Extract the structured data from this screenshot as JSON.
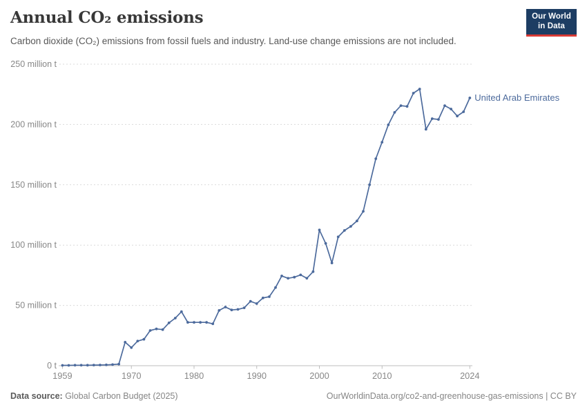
{
  "header": {
    "title": "Annual CO₂ emissions",
    "subtitle": "Carbon dioxide (CO₂) emissions from fossil fuels and industry. Land-use change emissions are not included.",
    "logo": {
      "line1": "Our World",
      "line2": "in Data"
    }
  },
  "chart_data": {
    "type": "line",
    "title": "Annual CO₂ emissions",
    "entity_label": "United Arab Emirates",
    "unit": "million t",
    "x": [
      1959,
      1960,
      1961,
      1962,
      1963,
      1964,
      1965,
      1966,
      1967,
      1968,
      1969,
      1970,
      1971,
      1972,
      1973,
      1974,
      1975,
      1976,
      1977,
      1978,
      1979,
      1980,
      1981,
      1982,
      1983,
      1984,
      1985,
      1986,
      1987,
      1988,
      1989,
      1990,
      1991,
      1992,
      1993,
      1994,
      1995,
      1996,
      1997,
      1998,
      1999,
      2000,
      2001,
      2002,
      2003,
      2004,
      2005,
      2006,
      2007,
      2008,
      2009,
      2010,
      2011,
      2012,
      2013,
      2014,
      2015,
      2016,
      2017,
      2018,
      2019,
      2020,
      2021,
      2022,
      2023,
      2024
    ],
    "series": [
      {
        "name": "United Arab Emirates",
        "color": "#4c6a9c",
        "values": [
          0.3,
          0.3,
          0.4,
          0.4,
          0.4,
          0.5,
          0.6,
          0.7,
          0.9,
          1.3,
          19.5,
          15.0,
          20.4,
          21.9,
          29.2,
          30.5,
          29.9,
          35.5,
          39.5,
          44.8,
          35.9,
          35.9,
          35.9,
          35.9,
          34.7,
          45.8,
          48.6,
          46.2,
          46.7,
          48.0,
          53.4,
          51.5,
          56.2,
          57.2,
          64.8,
          74.4,
          72.5,
          73.4,
          75.3,
          72.5,
          78.0,
          112.5,
          101.4,
          85.2,
          106.8,
          112.1,
          115.5,
          120.0,
          128.0,
          150.0,
          171.6,
          185.3,
          199.7,
          210.0,
          215.6,
          215.0,
          226.0,
          229.4,
          196.0,
          204.8,
          204.2,
          215.6,
          212.8,
          207.0,
          210.5,
          222.0
        ]
      }
    ],
    "x_ticks": [
      1959,
      1970,
      1980,
      1990,
      2000,
      2010,
      2024
    ],
    "y_ticks": [
      0,
      50,
      100,
      150,
      200,
      250
    ],
    "y_tick_labels": [
      "0 t",
      "50 million t",
      "100 million t",
      "150 million t",
      "200 million t",
      "250 million t"
    ],
    "xlim": [
      1959,
      2024
    ],
    "ylim": [
      0,
      250
    ],
    "grid": "horizontal-dashed",
    "legend_position": "end-of-line-label"
  },
  "footer": {
    "source_label": "Data source:",
    "source_value": " Global Carbon Budget (2025)",
    "credit": "OurWorldinData.org/co2-and-greenhouse-gas-emissions | CC BY"
  },
  "colors": {
    "line": "#4c6a9c",
    "entity_label": "#4c6a9c",
    "grid": "#d9d9d9",
    "axis": "#bcbcbc",
    "tick_text": "#878787",
    "logo_bg": "#1d3d63",
    "logo_red": "#d93a34"
  }
}
